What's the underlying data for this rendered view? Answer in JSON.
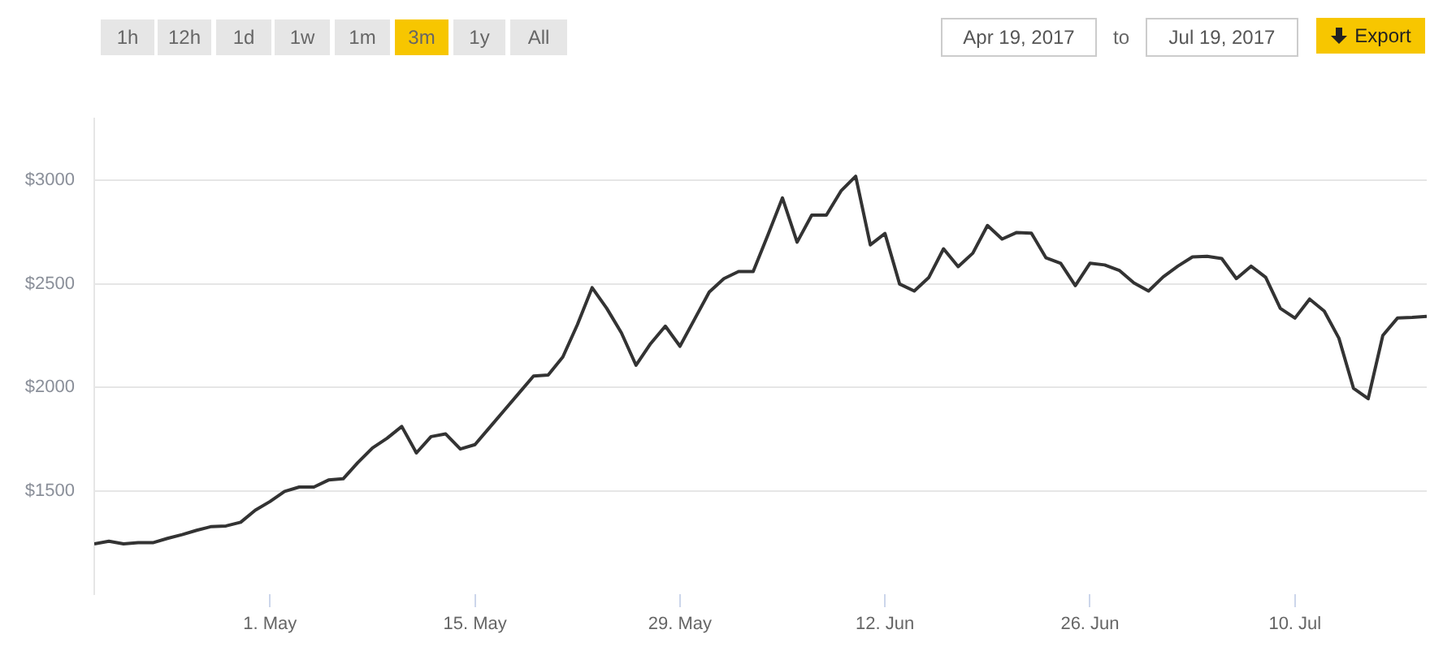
{
  "chart_data": {
    "type": "line",
    "annotations": [
      "1h",
      "12h",
      "1d",
      "1w",
      "1m",
      "3m",
      "1y",
      "All",
      "Apr 19, 2017",
      "to",
      "Jul 19, 2017",
      "Export"
    ],
    "x": [
      "2017-04-19",
      "2017-04-20",
      "2017-04-21",
      "2017-04-22",
      "2017-04-23",
      "2017-04-24",
      "2017-04-25",
      "2017-04-26",
      "2017-04-27",
      "2017-04-28",
      "2017-04-29",
      "2017-04-30",
      "2017-05-01",
      "2017-05-02",
      "2017-05-03",
      "2017-05-04",
      "2017-05-05",
      "2017-05-06",
      "2017-05-07",
      "2017-05-08",
      "2017-05-09",
      "2017-05-10",
      "2017-05-11",
      "2017-05-12",
      "2017-05-13",
      "2017-05-14",
      "2017-05-15",
      "2017-05-16",
      "2017-05-17",
      "2017-05-18",
      "2017-05-19",
      "2017-05-20",
      "2017-05-21",
      "2017-05-22",
      "2017-05-23",
      "2017-05-24",
      "2017-05-25",
      "2017-05-26",
      "2017-05-27",
      "2017-05-28",
      "2017-05-29",
      "2017-05-30",
      "2017-05-31",
      "2017-06-01",
      "2017-06-02",
      "2017-06-03",
      "2017-06-04",
      "2017-06-05",
      "2017-06-06",
      "2017-06-07",
      "2017-06-08",
      "2017-06-09",
      "2017-06-10",
      "2017-06-11",
      "2017-06-12",
      "2017-06-13",
      "2017-06-14",
      "2017-06-15",
      "2017-06-16",
      "2017-06-17",
      "2017-06-18",
      "2017-06-19",
      "2017-06-20",
      "2017-06-21",
      "2017-06-22",
      "2017-06-23",
      "2017-06-24",
      "2017-06-25",
      "2017-06-26",
      "2017-06-27",
      "2017-06-28",
      "2017-06-29",
      "2017-06-30",
      "2017-07-01",
      "2017-07-02",
      "2017-07-03",
      "2017-07-04",
      "2017-07-05",
      "2017-07-06",
      "2017-07-07",
      "2017-07-08",
      "2017-07-09",
      "2017-07-10",
      "2017-07-11",
      "2017-07-12",
      "2017-07-13",
      "2017-07-14",
      "2017-07-15",
      "2017-07-16",
      "2017-07-17",
      "2017-07-18",
      "2017-07-19"
    ],
    "values": [
      1243,
      1256,
      1243,
      1249,
      1249,
      1270,
      1288,
      1309,
      1327,
      1330,
      1348,
      1406,
      1448,
      1497,
      1518,
      1518,
      1552,
      1558,
      1636,
      1707,
      1754,
      1811,
      1683,
      1762,
      1775,
      1702,
      1723,
      1806,
      1889,
      1972,
      2055,
      2060,
      2147,
      2304,
      2482,
      2382,
      2264,
      2107,
      2212,
      2296,
      2199,
      2330,
      2461,
      2526,
      2560,
      2560,
      2736,
      2916,
      2702,
      2833,
      2833,
      2950,
      3021,
      2689,
      2744,
      2500,
      2466,
      2532,
      2670,
      2584,
      2649,
      2783,
      2717,
      2749,
      2746,
      2626,
      2600,
      2492,
      2600,
      2592,
      2566,
      2505,
      2466,
      2534,
      2586,
      2631,
      2634,
      2623,
      2526,
      2586,
      2532,
      2382,
      2335,
      2427,
      2369,
      2238,
      1995,
      1945,
      2251,
      2335,
      2338,
      2343
    ],
    "color": "#333333",
    "marker": "none",
    "xlim": [
      "2017-04-19",
      "2017-07-19"
    ],
    "xticks": [
      {
        "value": "2017-05-01",
        "label": "1. May"
      },
      {
        "value": "2017-05-15",
        "label": "15. May"
      },
      {
        "value": "2017-05-29",
        "label": "29. May"
      },
      {
        "value": "2017-06-12",
        "label": "12. Jun"
      },
      {
        "value": "2017-06-26",
        "label": "26. Jun"
      },
      {
        "value": "2017-07-10",
        "label": "10. Jul"
      }
    ],
    "ylim": [
      1000,
      3300
    ],
    "yticks": [
      {
        "value": 1500,
        "label": "$1500"
      },
      {
        "value": 2000,
        "label": "$2000"
      },
      {
        "value": 2500,
        "label": "$2500"
      },
      {
        "value": 3000,
        "label": "$3000"
      }
    ],
    "grid": "y"
  }
}
